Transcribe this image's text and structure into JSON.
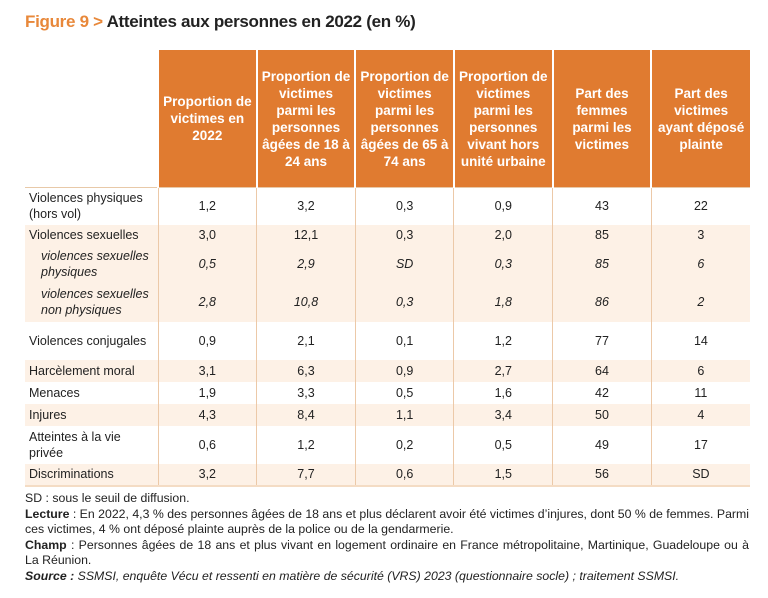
{
  "title": {
    "figure": "Figure 9 >",
    "text": "Atteintes aux personnes en 2022 (en %)"
  },
  "colors": {
    "header": "#e07b30",
    "figure_label": "#e8883a",
    "shade": "#fdf1e6"
  },
  "chart_data": {
    "type": "table",
    "title": "Atteintes aux personnes en 2022 (en %)",
    "columns": [
      "Proportion de victimes en 2022",
      "Proportion de victimes parmi les personnes âgées de 18 à 24 ans",
      "Proportion de victimes parmi les personnes âgées de 65 à 74 ans",
      "Proportion de victimes parmi les personnes vivant hors unité urbaine",
      "Part des femmes parmi les victimes",
      "Part des victimes ayant déposé plainte"
    ],
    "rows": [
      {
        "label": "Violences physiques (hors vol)",
        "values": [
          "1,2",
          "3,2",
          "0,3",
          "0,9",
          "43",
          "22"
        ],
        "sub": false,
        "shade": false
      },
      {
        "label": "Violences sexuelles",
        "values": [
          "3,0",
          "12,1",
          "0,3",
          "2,0",
          "85",
          "3"
        ],
        "sub": false,
        "shade": true
      },
      {
        "label": "violences sexuelles physiques",
        "values": [
          "0,5",
          "2,9",
          "SD",
          "0,3",
          "85",
          "6"
        ],
        "sub": true,
        "shade": true
      },
      {
        "label": "violences sexuelles non physiques",
        "values": [
          "2,8",
          "10,8",
          "0,3",
          "1,8",
          "86",
          "2"
        ],
        "sub": true,
        "shade": true
      },
      {
        "label": "Violences conjugales",
        "values": [
          "0,9",
          "2,1",
          "0,1",
          "1,2",
          "77",
          "14"
        ],
        "sub": false,
        "shade": false
      },
      {
        "label": "Harcèlement moral",
        "values": [
          "3,1",
          "6,3",
          "0,9",
          "2,7",
          "64",
          "6"
        ],
        "sub": false,
        "shade": true
      },
      {
        "label": "Menaces",
        "values": [
          "1,9",
          "3,3",
          "0,5",
          "1,6",
          "42",
          "11"
        ],
        "sub": false,
        "shade": false
      },
      {
        "label": "Injures",
        "values": [
          "4,3",
          "8,4",
          "1,1",
          "3,4",
          "50",
          "4"
        ],
        "sub": false,
        "shade": true
      },
      {
        "label": "Atteintes à la vie privée",
        "values": [
          "0,6",
          "1,2",
          "0,2",
          "0,5",
          "49",
          "17"
        ],
        "sub": false,
        "shade": false
      },
      {
        "label": "Discriminations",
        "values": [
          "3,2",
          "7,7",
          "0,6",
          "1,5",
          "56",
          "SD"
        ],
        "sub": false,
        "shade": true
      }
    ]
  },
  "notes": {
    "sd": "SD : sous le seuil de diffusion.",
    "lecture_label": "Lecture",
    "lecture": " : En 2022, 4,3 % des personnes âgées de 18 ans et plus déclarent avoir été victimes d’injures, dont 50 % de femmes. Parmi ces victimes, 4 % ont déposé plainte auprès de la police ou de la gendarmerie.",
    "champ_label": "Champ",
    "champ": " : Personnes âgées de 18 ans et plus vivant en logement ordinaire en France métropolitaine, Martinique, Guadeloupe ou à La Réunion.",
    "source_label": "Source :",
    "source": " SSMSI, enquête Vécu et ressenti en matière de sécurité (VRS) 2023 (questionnaire socle) ; traitement SSMSI."
  }
}
